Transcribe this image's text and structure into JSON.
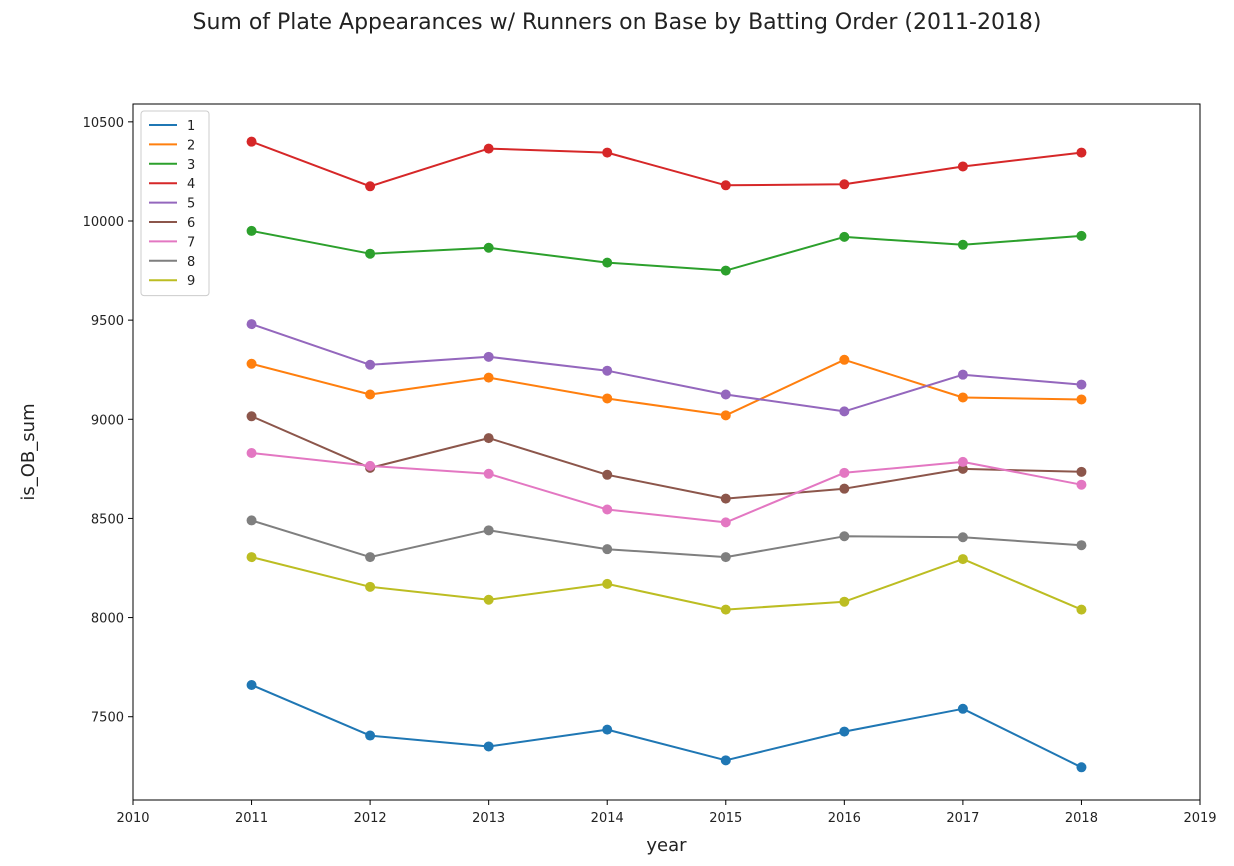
{
  "chart_data": {
    "type": "line",
    "title": "Sum of Plate Appearances w/ Runners on Base by Batting Order (2011-2018)",
    "xlabel": "year",
    "ylabel": "is_OB_sum",
    "xlim": [
      2010,
      2019
    ],
    "ylim": [
      7080,
      10590
    ],
    "xticks": [
      2010,
      2011,
      2012,
      2013,
      2014,
      2015,
      2016,
      2017,
      2018,
      2019
    ],
    "yticks": [
      7500,
      8000,
      8500,
      9000,
      9500,
      10000,
      10500
    ],
    "grid": false,
    "legend_position": "top-left",
    "markers": true,
    "x": [
      2011,
      2012,
      2013,
      2014,
      2015,
      2016,
      2017,
      2018
    ],
    "series": [
      {
        "name": "1",
        "color": "#1f77b4",
        "values": [
          7660,
          7405,
          7350,
          7435,
          7280,
          7425,
          7540,
          7245
        ]
      },
      {
        "name": "2",
        "color": "#ff7f0e",
        "values": [
          9280,
          9125,
          9210,
          9105,
          9020,
          9300,
          9110,
          9100
        ]
      },
      {
        "name": "3",
        "color": "#2ca02c",
        "values": [
          9950,
          9835,
          9865,
          9790,
          9750,
          9920,
          9880,
          9925
        ]
      },
      {
        "name": "4",
        "color": "#d62728",
        "values": [
          10400,
          10175,
          10365,
          10345,
          10180,
          10185,
          10275,
          10345
        ]
      },
      {
        "name": "5",
        "color": "#9467bd",
        "values": [
          9480,
          9275,
          9315,
          9245,
          9125,
          9040,
          9225,
          9175
        ]
      },
      {
        "name": "6",
        "color": "#8c564b",
        "values": [
          9015,
          8755,
          8905,
          8720,
          8600,
          8650,
          8750,
          8735
        ]
      },
      {
        "name": "7",
        "color": "#e377c2",
        "values": [
          8830,
          8765,
          8725,
          8545,
          8480,
          8730,
          8785,
          8670
        ]
      },
      {
        "name": "8",
        "color": "#7f7f7f",
        "values": [
          8490,
          8305,
          8440,
          8345,
          8305,
          8410,
          8405,
          8365
        ]
      },
      {
        "name": "9",
        "color": "#bcbd22",
        "values": [
          8305,
          8155,
          8090,
          8170,
          8040,
          8080,
          8295,
          8040
        ]
      }
    ]
  }
}
